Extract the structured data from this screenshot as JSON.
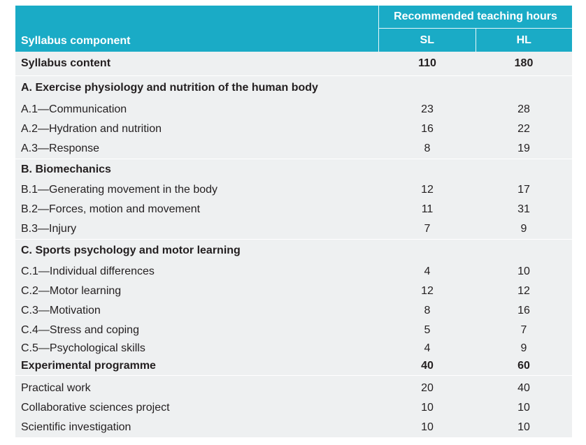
{
  "header": {
    "component_label": "Syllabus component",
    "hours_label": "Recommended teaching hours",
    "sl_label": "SL",
    "hl_label": "HL"
  },
  "syllabus_content": {
    "label": "Syllabus content",
    "sl": "110",
    "hl": "180"
  },
  "sections": [
    {
      "title": "A. Exercise physiology and nutrition of the human body",
      "items": [
        {
          "label": "A.1—Communication",
          "sl": "23",
          "hl": "28"
        },
        {
          "label": "A.2—Hydration and nutrition",
          "sl": "16",
          "hl": "22"
        },
        {
          "label": "A.3—Response",
          "sl": "8",
          "hl": "19"
        }
      ]
    },
    {
      "title": "B. Biomechanics",
      "items": [
        {
          "label": "B.1—Generating movement in the body",
          "sl": "12",
          "hl": "17"
        },
        {
          "label": "B.2—Forces, motion and movement",
          "sl": "11",
          "hl": "31"
        },
        {
          "label": "B.3—Injury",
          "sl": "7",
          "hl": "9"
        }
      ]
    },
    {
      "title": "C. Sports psychology and motor learning",
      "items": [
        {
          "label": "C.1—Individual differences",
          "sl": "4",
          "hl": "10"
        },
        {
          "label": "C.2—Motor learning",
          "sl": "12",
          "hl": "12"
        },
        {
          "label": "C.3—Motivation",
          "sl": "8",
          "hl": "16"
        },
        {
          "label": "C.4—Stress and coping",
          "sl": "5",
          "hl": "7"
        },
        {
          "label": "C.5—Psychological skills",
          "sl": "4",
          "hl": "9"
        }
      ]
    }
  ],
  "experimental": {
    "label": "Experimental programme",
    "sl": "40",
    "hl": "60",
    "items": [
      {
        "label": "Practical work",
        "sl": "20",
        "hl": "40"
      },
      {
        "label": "Collaborative sciences project",
        "sl": "10",
        "hl": "10"
      },
      {
        "label": "Scientific investigation",
        "sl": "10",
        "hl": "10"
      }
    ]
  },
  "colors": {
    "header_bg": "#1aabc6",
    "band_bg": "#eef0f1",
    "text": "#231f20"
  }
}
